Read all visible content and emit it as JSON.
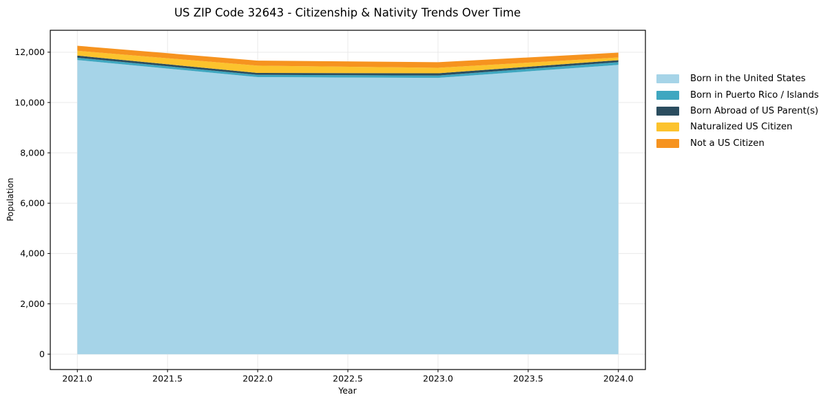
{
  "chart_data": {
    "type": "area",
    "stacked": true,
    "title": "US ZIP Code 32643 - Citizenship & Nativity Trends Over Time",
    "xlabel": "Year",
    "ylabel": "Population",
    "x": [
      2021,
      2022,
      2023,
      2024
    ],
    "series": [
      {
        "name": "Born in the United States",
        "color": "#a6d4e8",
        "values": [
          11690,
          11010,
          10980,
          11495
        ]
      },
      {
        "name": "Born in Puerto Rico / Islands",
        "color": "#3fa7c0",
        "values": [
          90,
          90,
          90,
          110
        ]
      },
      {
        "name": "Born Abroad of US Parent(s)",
        "color": "#2b4d5f",
        "values": [
          85,
          75,
          90,
          75
        ]
      },
      {
        "name": "Naturalized US Citizen",
        "color": "#fcc32d",
        "values": [
          190,
          290,
          220,
          110
        ]
      },
      {
        "name": "Not a US Citizen",
        "color": "#f6931f",
        "values": [
          200,
          200,
          220,
          190
        ]
      }
    ],
    "xlim": [
      2020.85,
      2024.15
    ],
    "ylim": [
      -610,
      12870
    ],
    "xticks": [
      2021.0,
      2021.5,
      2022.0,
      2022.5,
      2023.0,
      2023.5,
      2024.0
    ],
    "xtick_labels": [
      "2021.0",
      "2021.5",
      "2022.0",
      "2022.5",
      "2023.0",
      "2023.5",
      "2024.0"
    ],
    "yticks": [
      0,
      2000,
      4000,
      6000,
      8000,
      10000,
      12000
    ],
    "ytick_labels": [
      "0",
      "2,000",
      "4,000",
      "6,000",
      "8,000",
      "10,000",
      "12,000"
    ],
    "grid": true,
    "legend_position": "outside-right",
    "colors": {
      "grid": "#e9e9e9",
      "axis": "#000000",
      "background": "#ffffff",
      "tick_label": "#000000"
    }
  }
}
